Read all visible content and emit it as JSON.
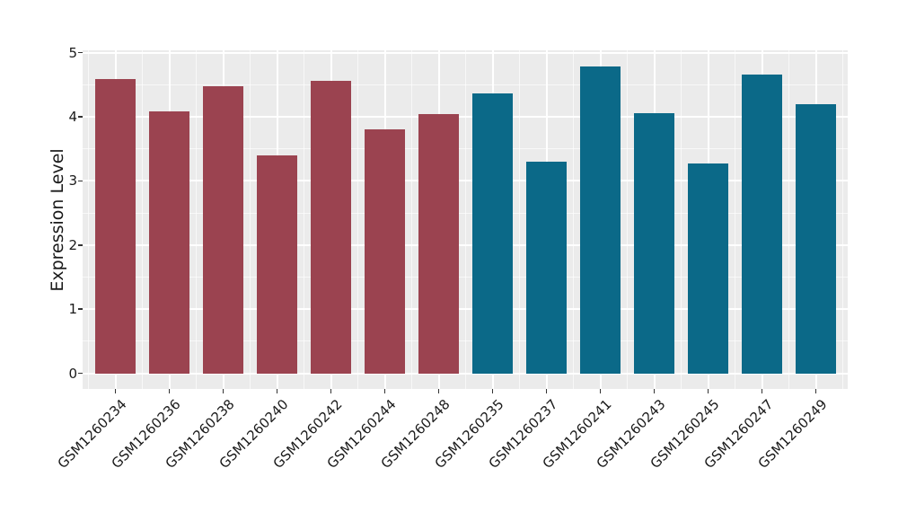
{
  "style": {
    "figure_bg": "#FFFFFF",
    "panel_bg": "#EBEBEB",
    "grid_major": "#FFFFFF",
    "grid_minor": "rgba(255,255,255,0.65)",
    "tick_mark_color": "#333333",
    "text_color": "#1A1A1A",
    "bar_red": "#9B4350",
    "bar_teal": "#0B6988"
  },
  "chart_data": {
    "type": "bar",
    "title": "",
    "xlabel": "",
    "ylabel": "Expression Level",
    "ylim": [
      0,
      5
    ],
    "y_major_ticks": [
      0,
      1,
      2,
      3,
      4,
      5
    ],
    "y_minor_ticks": [
      0.5,
      1.5,
      2.5,
      3.5,
      4.5
    ],
    "grid": "major and minor white gridlines on gray panel",
    "legend_position": "none",
    "categories": [
      "GSM1260234",
      "GSM1260236",
      "GSM1260238",
      "GSM1260240",
      "GSM1260242",
      "GSM1260244",
      "GSM1260248",
      "GSM1260235",
      "GSM1260237",
      "GSM1260241",
      "GSM1260243",
      "GSM1260245",
      "GSM1260247",
      "GSM1260249"
    ],
    "values": [
      4.59,
      4.08,
      4.48,
      3.4,
      4.56,
      3.81,
      4.05,
      4.37,
      3.3,
      4.79,
      4.06,
      3.27,
      4.66,
      4.2
    ],
    "bar_colors": [
      "#9B4350",
      "#9B4350",
      "#9B4350",
      "#9B4350",
      "#9B4350",
      "#9B4350",
      "#9B4350",
      "#0B6988",
      "#0B6988",
      "#0B6988",
      "#0B6988",
      "#0B6988",
      "#0B6988",
      "#0B6988"
    ]
  }
}
